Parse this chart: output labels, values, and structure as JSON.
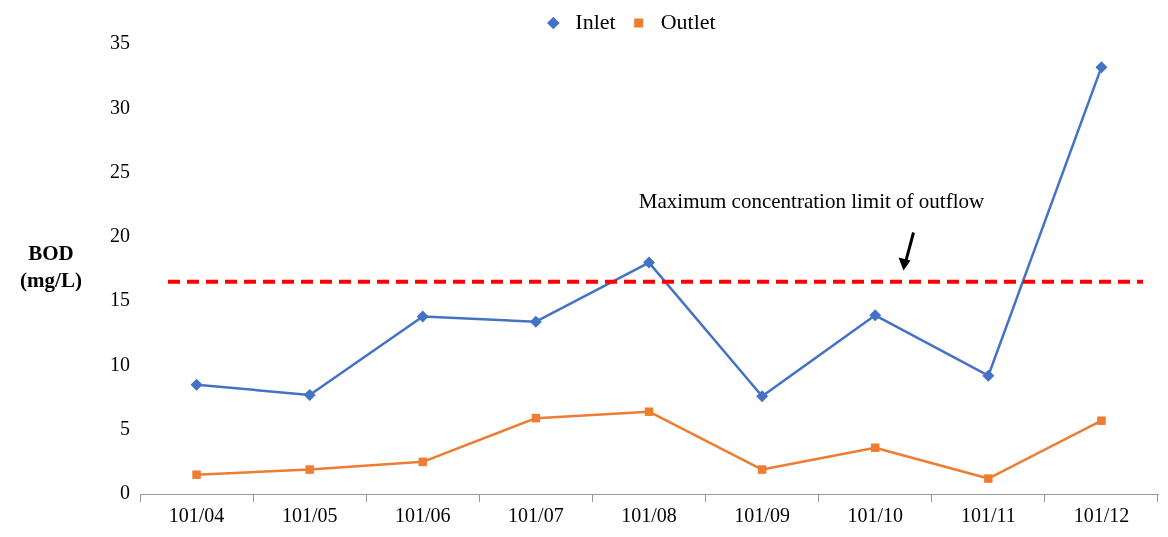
{
  "chart_data": {
    "type": "line",
    "ylabel": "BOD (mg/L)",
    "categories": [
      "101/04",
      "101/05",
      "101/06",
      "101/07",
      "101/08",
      "101/09",
      "101/10",
      "101/11",
      "101/12"
    ],
    "series": [
      {
        "name": "Inlet",
        "color": "#4472c4",
        "marker": "diamond",
        "values": [
          8.5,
          7.7,
          13.8,
          13.4,
          18.0,
          7.6,
          13.9,
          9.2,
          33.2
        ]
      },
      {
        "name": "Outlet",
        "color": "#ed7d31",
        "marker": "square",
        "values": [
          1.5,
          1.9,
          2.5,
          5.9,
          6.4,
          1.9,
          3.6,
          1.2,
          5.7
        ]
      }
    ],
    "ylim": [
      0,
      35
    ],
    "yticks": [
      0,
      5,
      10,
      15,
      20,
      25,
      30,
      35
    ],
    "grid": false,
    "legend": "top",
    "line_style": "solid",
    "ref_lines": [
      {
        "axis": "y",
        "value": 16.5,
        "color": "#ff0000",
        "line_style": "dashed"
      }
    ],
    "annotations": [
      "Maximum concentration limit of outflow"
    ]
  }
}
